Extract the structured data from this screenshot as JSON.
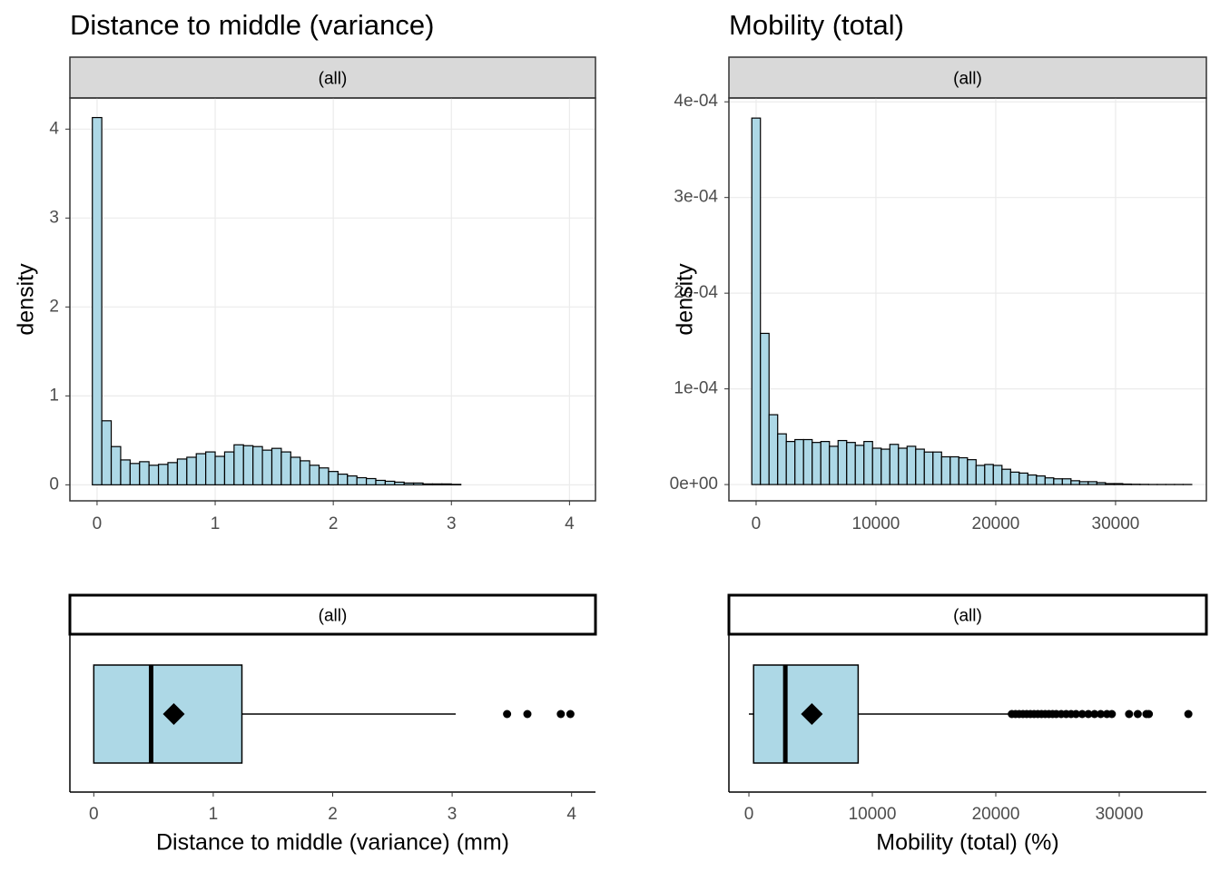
{
  "chart_data": [
    {
      "type": "histogram",
      "title": "Distance to middle (variance)",
      "strip": "(all)",
      "ylabel": "density",
      "color": "#add8e6",
      "grid": true,
      "bins": [
        -0.04,
        0.04,
        0.12,
        0.2,
        0.28,
        0.36,
        0.44,
        0.52,
        0.6,
        0.68,
        0.76,
        0.84,
        0.92,
        1.0,
        1.08,
        1.16,
        1.24,
        1.32,
        1.4,
        1.48,
        1.56,
        1.64,
        1.72,
        1.8,
        1.88,
        1.96,
        2.04,
        2.12,
        2.2,
        2.28,
        2.36,
        2.44,
        2.52,
        2.6,
        2.68,
        2.76,
        2.84,
        2.92,
        3.0,
        3.08,
        3.16,
        3.24,
        3.32,
        3.4,
        3.48,
        3.56,
        3.64,
        3.72,
        3.8,
        3.88,
        3.96,
        4.04
      ],
      "values": [
        4.13,
        0.72,
        0.43,
        0.28,
        0.24,
        0.26,
        0.22,
        0.23,
        0.25,
        0.29,
        0.31,
        0.35,
        0.37,
        0.32,
        0.37,
        0.45,
        0.44,
        0.43,
        0.39,
        0.41,
        0.37,
        0.31,
        0.27,
        0.22,
        0.19,
        0.15,
        0.12,
        0.1,
        0.08,
        0.07,
        0.05,
        0.04,
        0.03,
        0.02,
        0.02,
        0.01,
        0.01,
        0.01,
        0.005,
        0,
        0,
        0,
        0,
        0,
        0,
        0,
        0,
        0,
        0,
        0,
        0
      ],
      "xlim": [
        -0.23,
        4.22
      ],
      "xticks": [
        0,
        1,
        2,
        3,
        4
      ],
      "ylim": [
        -0.18,
        4.35
      ],
      "yticks": [
        0,
        1,
        2,
        3,
        4
      ]
    },
    {
      "type": "histogram",
      "title": "Mobility (total)",
      "strip": "(all)",
      "ylabel": "density",
      "color": "#add8e6",
      "grid": true,
      "bins": [
        -360,
        360,
        1080,
        1800,
        2520,
        3240,
        3960,
        4680,
        5400,
        6120,
        6840,
        7560,
        8280,
        9000,
        9720,
        10440,
        11160,
        11880,
        12600,
        13320,
        14040,
        14760,
        15480,
        16200,
        16920,
        17640,
        18360,
        19080,
        19800,
        20520,
        21240,
        21960,
        22680,
        23400,
        24120,
        24840,
        25560,
        26280,
        27000,
        27720,
        28440,
        29160,
        29880,
        30600,
        31320,
        32040,
        32760,
        33480,
        34200,
        34920,
        35640,
        36360
      ],
      "values": [
        0.000383,
        0.000158,
        7.3e-05,
        5.3e-05,
        4.5e-05,
        4.7e-05,
        4.7e-05,
        4.4e-05,
        4.5e-05,
        4e-05,
        4.6e-05,
        4.4e-05,
        4.1e-05,
        4.5e-05,
        3.8e-05,
        3.7e-05,
        4.2e-05,
        3.8e-05,
        4e-05,
        3.7e-05,
        3.4e-05,
        3.4e-05,
        2.9e-05,
        2.9e-05,
        2.8e-05,
        2.6e-05,
        2e-05,
        2.1e-05,
        2e-05,
        1.6e-05,
        1.3e-05,
        1.2e-05,
        1e-05,
        9e-06,
        7e-06,
        6e-06,
        6e-06,
        4e-06,
        3e-06,
        3e-06,
        2e-06,
        1e-06,
        1e-06,
        5e-07,
        3e-07,
        2e-07,
        1e-07,
        1e-07,
        1e-07,
        1e-07,
        1e-07
      ],
      "xlim": [
        -2270,
        37580
      ],
      "xticks": [
        0,
        10000,
        20000,
        30000
      ],
      "ylim": [
        -1.7e-05,
        0.000404
      ],
      "yticks": [
        {
          "value": 0,
          "label": "0e+00"
        },
        {
          "value": 0.0001,
          "label": "1e-04"
        },
        {
          "value": 0.0002,
          "label": "2e-04"
        },
        {
          "value": 0.0003,
          "label": "3e-04"
        },
        {
          "value": 0.0004,
          "label": "4e-04"
        }
      ]
    },
    {
      "type": "boxplot",
      "strip": "(all)",
      "xlabel": "Distance to middle (variance) (mm)",
      "color": "#add8e6",
      "whisker_low": 0,
      "q1": 0,
      "median": 0.48,
      "q3": 1.24,
      "whisker_high": 3.03,
      "mean": 0.67,
      "outliers": [
        3.46,
        3.63,
        3.91,
        3.99
      ],
      "xlim": [
        -0.2,
        4.2
      ],
      "xticks": [
        0,
        1,
        2,
        3,
        4
      ]
    },
    {
      "type": "boxplot",
      "strip": "(all)",
      "xlabel": "Mobility (total) (%)",
      "color": "#add8e6",
      "whisker_low": 0,
      "q1": 380,
      "median": 2950,
      "q3": 8850,
      "whisker_high": 21100,
      "mean": 5100,
      "outliers": [
        21300,
        21600,
        21900,
        22200,
        22500,
        22800,
        23100,
        23400,
        23700,
        24000,
        24300,
        24600,
        24900,
        25300,
        25700,
        26100,
        26500,
        27000,
        27500,
        28000,
        28500,
        29000,
        29400,
        30800,
        31500,
        32200,
        32400,
        35600
      ],
      "xlim": [
        -1620,
        37060
      ],
      "xticks": [
        0,
        10000,
        20000,
        30000
      ]
    }
  ]
}
